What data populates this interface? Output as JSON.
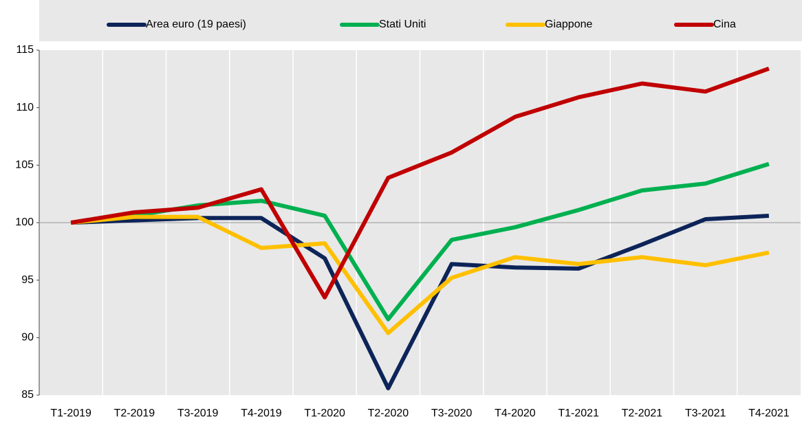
{
  "chart_data": {
    "type": "line",
    "categories": [
      "T1-2019",
      "T2-2019",
      "T3-2019",
      "T4-2019",
      "T1-2020",
      "T2-2020",
      "T3-2020",
      "T4-2020",
      "T1-2021",
      "T2-2021",
      "T3-2021",
      "T4-2021"
    ],
    "series": [
      {
        "name": "Area euro (19 paesi)",
        "color": "#0d2459",
        "values": [
          100,
          100.2,
          100.4,
          100.4,
          96.9,
          85.6,
          96.4,
          96.1,
          96.0,
          98.1,
          100.3,
          100.6
        ]
      },
      {
        "name": "Stati Uniti",
        "color": "#00b050",
        "values": [
          100,
          100.6,
          101.5,
          101.9,
          100.6,
          91.6,
          98.5,
          99.6,
          101.1,
          102.8,
          103.4,
          105.1
        ]
      },
      {
        "name": "Giappone",
        "color": "#ffc000",
        "values": [
          100,
          100.5,
          100.5,
          97.8,
          98.2,
          90.4,
          95.2,
          97.0,
          96.4,
          97.0,
          96.3,
          97.4
        ]
      },
      {
        "name": "Cina",
        "color": "#c00000",
        "values": [
          100,
          100.9,
          101.3,
          102.9,
          93.5,
          103.9,
          106.1,
          109.2,
          110.9,
          112.1,
          111.4,
          113.4
        ]
      }
    ],
    "ylim": [
      85,
      115
    ],
    "yticks": [
      85,
      90,
      95,
      100,
      105,
      110,
      115
    ],
    "reference_line": 100,
    "legend": "top"
  }
}
